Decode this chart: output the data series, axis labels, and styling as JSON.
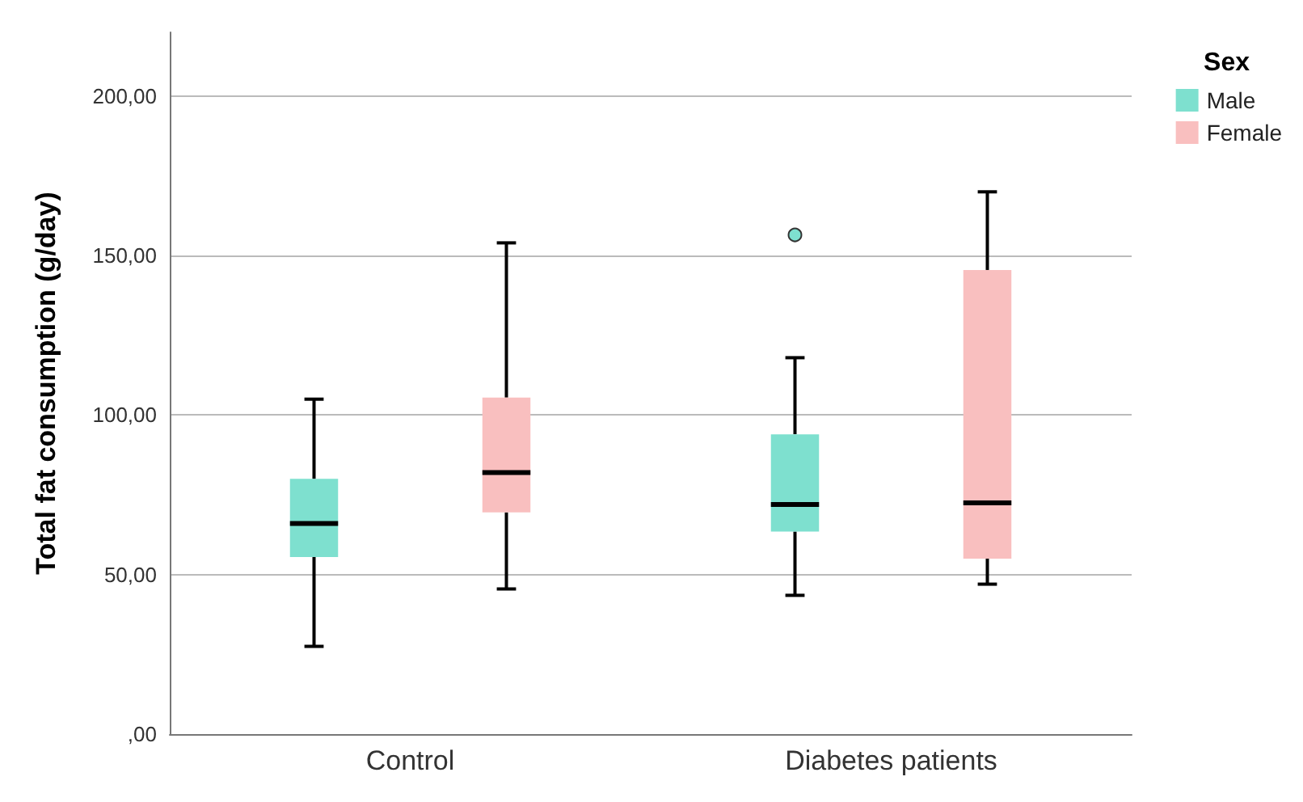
{
  "chart_data": {
    "type": "box",
    "ylabel": "Total fat consumption (g/day)",
    "legend_title": "Sex",
    "categories": [
      "Control",
      "Diabetes patients"
    ],
    "ylim": [
      0,
      220
    ],
    "yticks": [
      {
        "value": 0,
        "label": ",00"
      },
      {
        "value": 50,
        "label": "50,00"
      },
      {
        "value": 100,
        "label": "100,00"
      },
      {
        "value": 150,
        "label": "150,00"
      },
      {
        "value": 200,
        "label": "200,00"
      }
    ],
    "grid": "y",
    "legend": "top right",
    "series": [
      {
        "name": "Male",
        "color": "#7ee0cf",
        "boxes": [
          {
            "low": 27.5,
            "q1": 55.5,
            "median": 66,
            "q3": 80,
            "high": 105
          },
          {
            "low": 43.5,
            "q1": 63.5,
            "median": 72,
            "q3": 94,
            "high": 118,
            "outliers": [
              156.5
            ]
          }
        ]
      },
      {
        "name": "Female",
        "color": "#f9bfbf",
        "boxes": [
          {
            "low": 45.5,
            "q1": 69.5,
            "median": 82,
            "q3": 105.5,
            "high": 154
          },
          {
            "low": 47,
            "q1": 55,
            "median": 72.5,
            "q3": 145.5,
            "high": 170
          }
        ]
      }
    ]
  }
}
